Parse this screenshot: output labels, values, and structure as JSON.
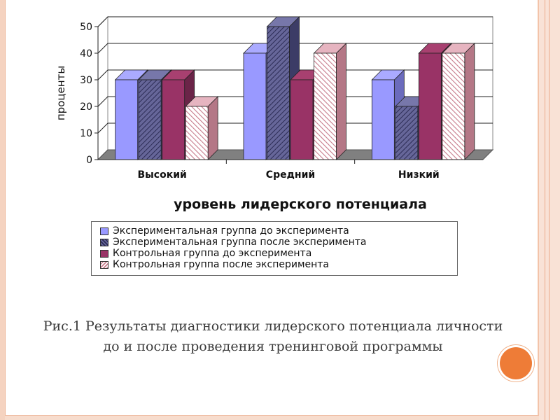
{
  "chart_data": {
    "type": "bar",
    "ylabel": "проценты",
    "xlabel": "уровень лидерского потенциала",
    "ylim": [
      0,
      50
    ],
    "yticks": [
      0,
      10,
      20,
      30,
      40,
      50
    ],
    "categories": [
      "Высокий",
      "Средний",
      "Низкий"
    ],
    "series": [
      {
        "name": "Экспериментальная группа до эксперимента",
        "values": [
          30,
          40,
          30
        ],
        "color": "#9999ff",
        "pattern": "solid"
      },
      {
        "name": "Экспериментальная группа после эксперимента",
        "values": [
          30,
          50,
          20
        ],
        "color": "#666699",
        "pattern": "dense-hatch"
      },
      {
        "name": "Контрольная группа до эксперимента",
        "values": [
          30,
          30,
          40
        ],
        "color": "#993366",
        "pattern": "solid"
      },
      {
        "name": "Контрольная группа после эксперимента",
        "values": [
          20,
          40,
          40
        ],
        "color": "#f2c6cf",
        "pattern": "diagonal-stripe"
      }
    ],
    "grid": true,
    "legend_position": "bottom"
  },
  "caption": {
    "line1": "Рис.1 Результаты диагностики лидерского потенциала личности",
    "line2": "до и после проведения тренинговой программы"
  }
}
